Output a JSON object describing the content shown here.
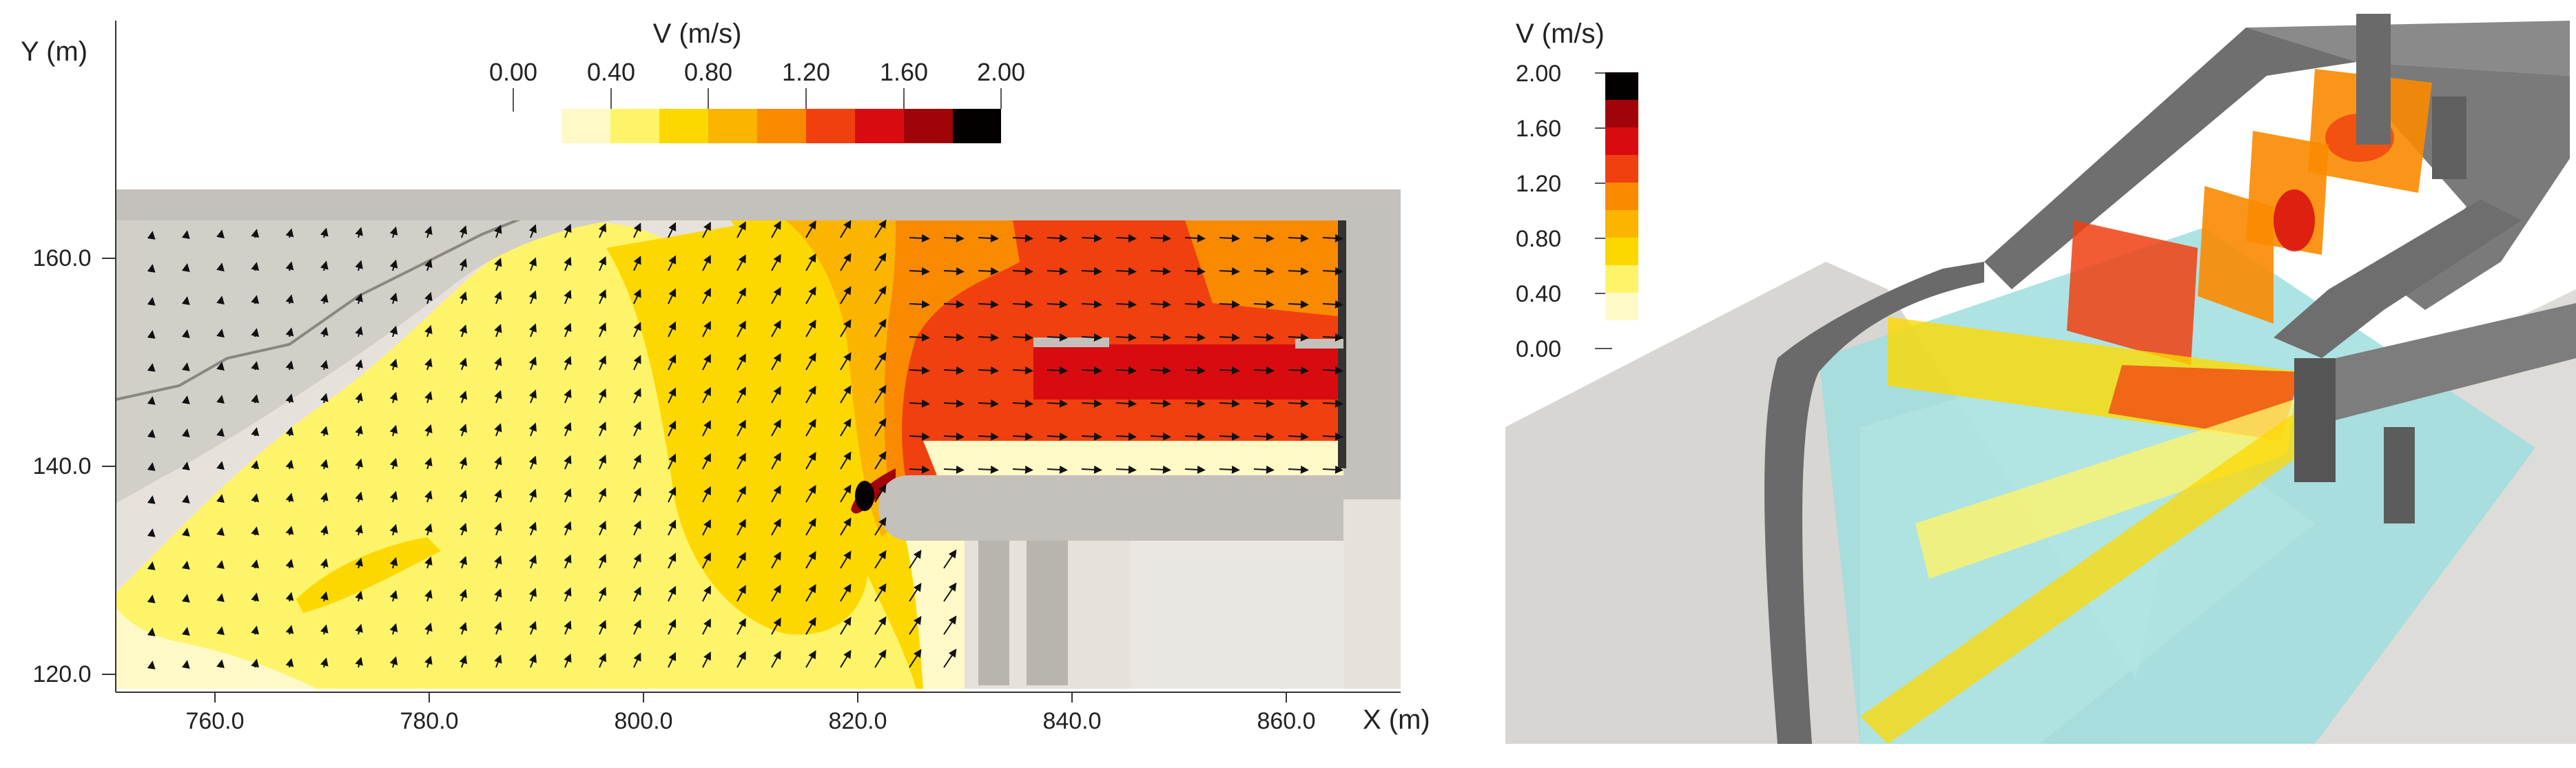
{
  "left": {
    "colorbar": {
      "title": "V (m/s)",
      "tick_labels": [
        "0.00",
        "0.40",
        "0.80",
        "1.20",
        "1.60",
        "2.00"
      ],
      "colors": [
        "#fff9c8",
        "#fef46a",
        "#fdd800",
        "#fbb400",
        "#f98a00",
        "#f04010",
        "#d80c10",
        "#a00408",
        "#050000"
      ]
    },
    "axes": {
      "ylabel": "Y (m)",
      "xlabel": "X (m)",
      "yticks": [
        "160.0",
        "140.0",
        "120.0"
      ],
      "xticks": [
        "760.0",
        "780.0",
        "800.0",
        "820.0",
        "840.0",
        "860.0"
      ]
    }
  },
  "right": {
    "colorbar": {
      "title": "V (m/s)",
      "tick_labels": [
        "2.00",
        "1.60",
        "1.20",
        "0.80",
        "0.40",
        "0.00"
      ],
      "colors": [
        "#050000",
        "#a00408",
        "#d80c10",
        "#f04010",
        "#f98a00",
        "#fbb400",
        "#fdd800",
        "#fef46a",
        "#fff9c8"
      ]
    }
  }
}
